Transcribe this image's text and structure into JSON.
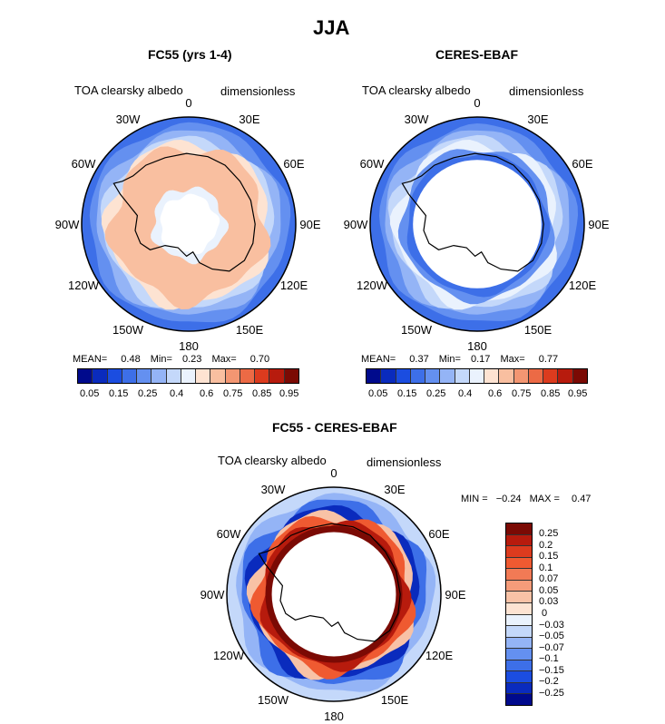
{
  "page": {
    "title": "JJA"
  },
  "colors": {
    "scale": [
      "#000a8c",
      "#0a2bbd",
      "#1b4de0",
      "#3d6fe8",
      "#6490f0",
      "#94b4f6",
      "#c4d8fa",
      "#eaf2fd",
      "#fde3d2",
      "#f9bfa0",
      "#f39672",
      "#ec6a45",
      "#dc3b1e",
      "#b71b0d",
      "#7b0a04"
    ],
    "diff_scale": [
      "#7b0a04",
      "#b71b0d",
      "#dc3b1e",
      "#ef5a31",
      "#f27a55",
      "#f59c7a",
      "#f8c2a6",
      "#fde3d2",
      "#eaf2fd",
      "#c4d8fa",
      "#94b4f6",
      "#6490f0",
      "#3d6fe8",
      "#1b4de0",
      "#0a2bbd",
      "#000a8c"
    ]
  },
  "panels": [
    {
      "id": "fc55",
      "subtitle": "FC55 (yrs 1-4)",
      "variable": "TOA clearsky albedo",
      "units": "dimensionless",
      "stats": {
        "mean_label": "MEAN=",
        "mean": "0.48",
        "min_label": "Min=",
        "min": "0.23",
        "max_label": "Max=",
        "max": "0.70"
      },
      "colorbar_ticks": [
        "0.05",
        "0.15",
        "0.25",
        "0.4",
        "0.6",
        "0.75",
        "0.85",
        "0.95"
      ]
    },
    {
      "id": "ceres",
      "subtitle": "CERES-EBAF",
      "variable": "TOA clearsky albedo",
      "units": "dimensionless",
      "stats": {
        "mean_label": "MEAN=",
        "mean": "0.37",
        "min_label": "Min=",
        "min": "0.17",
        "max_label": "Max=",
        "max": "0.77"
      },
      "colorbar_ticks": [
        "0.05",
        "0.15",
        "0.25",
        "0.4",
        "0.6",
        "0.75",
        "0.85",
        "0.95"
      ]
    },
    {
      "id": "diff",
      "subtitle": "FC55 - CERES-EBAF",
      "variable": "TOA clearsky albedo",
      "units": "dimensionless",
      "stats": {
        "min_label": "MIN =",
        "min": "−0.24",
        "max_label": "MAX =",
        "max": "0.47"
      },
      "colorbar_ticks": [
        "0.25",
        "0.2",
        "0.15",
        "0.1",
        "0.07",
        "0.05",
        "0.03",
        "0",
        "−0.03",
        "−0.05",
        "−0.07",
        "−0.1",
        "−0.15",
        "−0.2",
        "−0.25"
      ]
    }
  ],
  "longitude_labels": [
    "0",
    "30E",
    "60E",
    "90E",
    "120E",
    "150E",
    "180",
    "150W",
    "120W",
    "90W",
    "60W",
    "30W"
  ]
}
